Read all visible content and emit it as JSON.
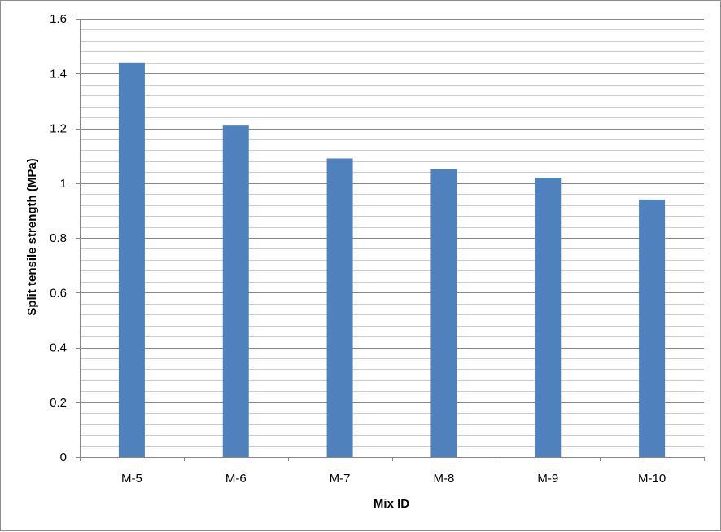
{
  "chart_data": {
    "type": "bar",
    "title": "",
    "xlabel": "Mix ID",
    "ylabel": "Split  tensile strength (MPa)",
    "categories": [
      "M-5",
      "M-6",
      "M-7",
      "M-8",
      "M-9",
      "M-10"
    ],
    "values": [
      1.44,
      1.21,
      1.09,
      1.05,
      1.02,
      0.94
    ],
    "ylim": [
      0,
      1.6
    ],
    "yticks": [
      "0",
      "0.2",
      "0.4",
      "0.6",
      "0.8",
      "1",
      "1.2",
      "1.4",
      "1.6"
    ],
    "grid": true,
    "legend": "none",
    "bar_color": "#4f81bd",
    "gridline_color": "#868686"
  }
}
